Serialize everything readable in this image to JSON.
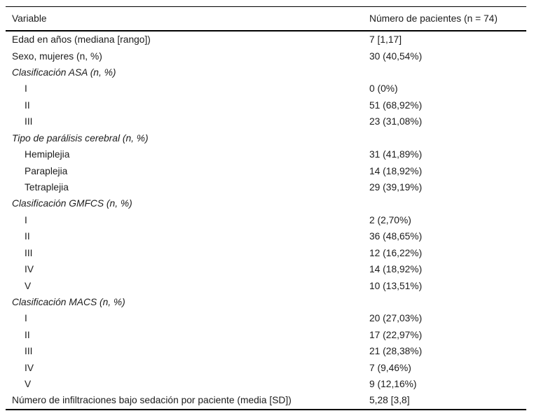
{
  "table": {
    "header": {
      "col1": "Variable",
      "col2": "Número de pacientes (n = 74)"
    },
    "rows": [
      {
        "label": "Edad en años (mediana [rango])",
        "value": "7 [1,17]",
        "style": "normal"
      },
      {
        "label": "Sexo, mujeres (n, %)",
        "value": "30 (40,54%)",
        "style": "normal"
      },
      {
        "label": "Clasificación ASA (n, %)",
        "value": "",
        "style": "section"
      },
      {
        "label": "I",
        "value": "0 (0%)",
        "style": "sub"
      },
      {
        "label": "II",
        "value": "51 (68,92%)",
        "style": "sub"
      },
      {
        "label": "III",
        "value": "23 (31,08%)",
        "style": "sub"
      },
      {
        "label": "Tipo de parálisis cerebral (n, %)",
        "value": "",
        "style": "section"
      },
      {
        "label": "Hemiplejia",
        "value": "31 (41,89%)",
        "style": "sub"
      },
      {
        "label": "Paraplejia",
        "value": "14 (18,92%)",
        "style": "sub"
      },
      {
        "label": "Tetraplejia",
        "value": "29 (39,19%)",
        "style": "sub"
      },
      {
        "label": "Clasificación GMFCS (n, %)",
        "value": "",
        "style": "section"
      },
      {
        "label": "I",
        "value": "2 (2,70%)",
        "style": "sub"
      },
      {
        "label": "II",
        "value": "36 (48,65%)",
        "style": "sub"
      },
      {
        "label": "III",
        "value": "12 (16,22%)",
        "style": "sub"
      },
      {
        "label": "IV",
        "value": "14 (18,92%)",
        "style": "sub"
      },
      {
        "label": "V",
        "value": "10 (13,51%)",
        "style": "sub"
      },
      {
        "label": "Clasificación MACS (n, %)",
        "value": "",
        "style": "section"
      },
      {
        "label": "I",
        "value": "20 (27,03%)",
        "style": "sub"
      },
      {
        "label": "II",
        "value": "17 (22,97%)",
        "style": "sub"
      },
      {
        "label": "III",
        "value": "21 (28,38%)",
        "style": "sub"
      },
      {
        "label": "IV",
        "value": "7 (9,46%)",
        "style": "sub"
      },
      {
        "label": "V",
        "value": "9 (12,16%)",
        "style": "sub"
      },
      {
        "label": "Número de infiltraciones bajo sedación por paciente (media [SD])",
        "value": "5,28 [3,8]",
        "style": "normal"
      }
    ],
    "colors": {
      "text": "#1c1c1c",
      "rule": "#000000",
      "background": "#ffffff"
    }
  }
}
